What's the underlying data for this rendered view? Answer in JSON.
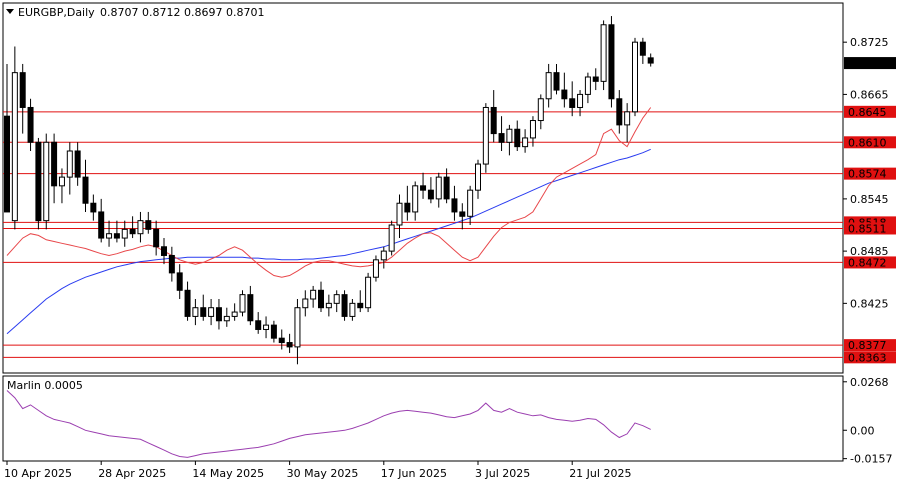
{
  "header": {
    "symbol_tf": "EURGBP,Daily",
    "ohlc": "0.8707 0.8712 0.8697 0.8701"
  },
  "colors": {
    "bull": "#ffffff",
    "bear": "#000000",
    "wick": "#000000",
    "ma_fast": "#e8474a",
    "ma_slow": "#2a3cf0",
    "level": "#e01010",
    "marlin": "#9b3fb0",
    "grid_bg": "#ffffff",
    "panel_bg": "#d4d0c8"
  },
  "chart_data": {
    "type": "candlestick",
    "yrange_price": [
      0.8345,
      0.877
    ],
    "yrange_osc": [
      -0.017,
      0.03
    ],
    "price_ticks": [
      "0.8725",
      "0.8665",
      "0.8545",
      "0.8485",
      "0.8425"
    ],
    "current_price": "0.8701",
    "levels": [
      {
        "value": 0.8645,
        "label": "0.8645"
      },
      {
        "value": 0.861,
        "label": "0.8610"
      },
      {
        "value": 0.8574,
        "label": "0.8574"
      },
      {
        "value": 0.8518,
        "label": "0.8518"
      },
      {
        "value": 0.8511,
        "label": "0.8511"
      },
      {
        "value": 0.8472,
        "label": "0.8472"
      },
      {
        "value": 0.8377,
        "label": "0.8377"
      },
      {
        "value": 0.8363,
        "label": "0.8363"
      }
    ],
    "date_labels": [
      {
        "i": 0,
        "label": "10 Apr 2025"
      },
      {
        "i": 12,
        "label": "28 Apr 2025"
      },
      {
        "i": 24,
        "label": "14 May 2025"
      },
      {
        "i": 36,
        "label": "30 May 2025"
      },
      {
        "i": 48,
        "label": "17 Jun 2025"
      },
      {
        "i": 60,
        "label": "3 Jul 2025"
      },
      {
        "i": 72,
        "label": "21 Jul 2025"
      }
    ],
    "osc_ticks": [
      "0.0268",
      "0.00",
      "-0.0157"
    ],
    "osc_title": "Marlin 0.0005",
    "candles": [
      [
        0.864,
        0.87,
        0.853,
        0.853
      ],
      [
        0.852,
        0.872,
        0.851,
        0.869
      ],
      [
        0.869,
        0.87,
        0.862,
        0.865
      ],
      [
        0.865,
        0.866,
        0.86,
        0.861
      ],
      [
        0.861,
        0.8615,
        0.851,
        0.852
      ],
      [
        0.852,
        0.862,
        0.851,
        0.861
      ],
      [
        0.861,
        0.862,
        0.854,
        0.856
      ],
      [
        0.856,
        0.858,
        0.854,
        0.857
      ],
      [
        0.857,
        0.861,
        0.855,
        0.86
      ],
      [
        0.86,
        0.861,
        0.856,
        0.857
      ],
      [
        0.857,
        0.859,
        0.853,
        0.854
      ],
      [
        0.854,
        0.855,
        0.852,
        0.853
      ],
      [
        0.853,
        0.8545,
        0.8495,
        0.85
      ],
      [
        0.85,
        0.852,
        0.849,
        0.8505
      ],
      [
        0.8505,
        0.852,
        0.8495,
        0.85
      ],
      [
        0.85,
        0.852,
        0.849,
        0.851
      ],
      [
        0.851,
        0.8525,
        0.85,
        0.8505
      ],
      [
        0.8505,
        0.853,
        0.8495,
        0.852
      ],
      [
        0.852,
        0.853,
        0.8505,
        0.851
      ],
      [
        0.851,
        0.852,
        0.848,
        0.849
      ],
      [
        0.849,
        0.85,
        0.847,
        0.848
      ],
      [
        0.848,
        0.849,
        0.845,
        0.846
      ],
      [
        0.846,
        0.847,
        0.843,
        0.844
      ],
      [
        0.844,
        0.845,
        0.8405,
        0.841
      ],
      [
        0.841,
        0.843,
        0.84,
        0.842
      ],
      [
        0.842,
        0.8435,
        0.8405,
        0.841
      ],
      [
        0.841,
        0.843,
        0.84,
        0.842
      ],
      [
        0.842,
        0.843,
        0.8395,
        0.8405
      ],
      [
        0.8405,
        0.842,
        0.8398,
        0.841
      ],
      [
        0.841,
        0.8425,
        0.8405,
        0.8415
      ],
      [
        0.8415,
        0.844,
        0.841,
        0.8435
      ],
      [
        0.8435,
        0.8445,
        0.84,
        0.8405
      ],
      [
        0.8405,
        0.8415,
        0.839,
        0.8395
      ],
      [
        0.8395,
        0.841,
        0.8385,
        0.84
      ],
      [
        0.84,
        0.8405,
        0.838,
        0.8385
      ],
      [
        0.8385,
        0.8395,
        0.8372,
        0.838
      ],
      [
        0.838,
        0.839,
        0.8368,
        0.8375
      ],
      [
        0.8375,
        0.843,
        0.8355,
        0.842
      ],
      [
        0.842,
        0.844,
        0.841,
        0.843
      ],
      [
        0.843,
        0.8445,
        0.842,
        0.844
      ],
      [
        0.844,
        0.845,
        0.8415,
        0.842
      ],
      [
        0.842,
        0.8435,
        0.841,
        0.8425
      ],
      [
        0.8425,
        0.844,
        0.8415,
        0.8435
      ],
      [
        0.8435,
        0.844,
        0.8405,
        0.841
      ],
      [
        0.841,
        0.843,
        0.8405,
        0.8425
      ],
      [
        0.8425,
        0.844,
        0.8415,
        0.842
      ],
      [
        0.842,
        0.846,
        0.8415,
        0.8455
      ],
      [
        0.8455,
        0.848,
        0.845,
        0.8475
      ],
      [
        0.8475,
        0.849,
        0.8465,
        0.8485
      ],
      [
        0.8485,
        0.852,
        0.848,
        0.8515
      ],
      [
        0.8515,
        0.855,
        0.85,
        0.854
      ],
      [
        0.854,
        0.856,
        0.852,
        0.853
      ],
      [
        0.853,
        0.8565,
        0.852,
        0.856
      ],
      [
        0.856,
        0.8575,
        0.8545,
        0.8555
      ],
      [
        0.8555,
        0.857,
        0.854,
        0.8545
      ],
      [
        0.8545,
        0.8575,
        0.8535,
        0.857
      ],
      [
        0.857,
        0.858,
        0.854,
        0.8545
      ],
      [
        0.8545,
        0.856,
        0.852,
        0.853
      ],
      [
        0.853,
        0.854,
        0.851,
        0.8525
      ],
      [
        0.8525,
        0.856,
        0.8515,
        0.8555
      ],
      [
        0.8555,
        0.859,
        0.8545,
        0.8585
      ],
      [
        0.8585,
        0.8655,
        0.8575,
        0.865
      ],
      [
        0.865,
        0.867,
        0.861,
        0.862
      ],
      [
        0.862,
        0.864,
        0.86,
        0.861
      ],
      [
        0.861,
        0.863,
        0.8595,
        0.8625
      ],
      [
        0.8625,
        0.8635,
        0.86,
        0.8605
      ],
      [
        0.8605,
        0.8625,
        0.8598,
        0.8615
      ],
      [
        0.8615,
        0.864,
        0.8605,
        0.8635
      ],
      [
        0.8635,
        0.8665,
        0.8625,
        0.866
      ],
      [
        0.866,
        0.87,
        0.865,
        0.869
      ],
      [
        0.869,
        0.87,
        0.8665,
        0.867
      ],
      [
        0.867,
        0.869,
        0.865,
        0.866
      ],
      [
        0.866,
        0.868,
        0.864,
        0.865
      ],
      [
        0.865,
        0.867,
        0.864,
        0.8665
      ],
      [
        0.8665,
        0.869,
        0.8655,
        0.8685
      ],
      [
        0.8685,
        0.8695,
        0.867,
        0.868
      ],
      [
        0.868,
        0.875,
        0.867,
        0.8745
      ],
      [
        0.8745,
        0.8755,
        0.865,
        0.866
      ],
      [
        0.866,
        0.867,
        0.862,
        0.863
      ],
      [
        0.863,
        0.8655,
        0.861,
        0.8645
      ],
      [
        0.8645,
        0.873,
        0.864,
        0.8725
      ],
      [
        0.8725,
        0.873,
        0.87,
        0.871
      ],
      [
        0.8707,
        0.8712,
        0.8697,
        0.8701
      ]
    ],
    "ma_fast": [
      0.848,
      0.849,
      0.85,
      0.8505,
      0.8503,
      0.8498,
      0.8496,
      0.8494,
      0.8492,
      0.849,
      0.8488,
      0.8485,
      0.8482,
      0.848,
      0.8482,
      0.8485,
      0.8487,
      0.849,
      0.8492,
      0.849,
      0.8485,
      0.848,
      0.8475,
      0.8472,
      0.847,
      0.8472,
      0.8476,
      0.848,
      0.8486,
      0.849,
      0.8486,
      0.8478,
      0.847,
      0.8463,
      0.8457,
      0.8455,
      0.8457,
      0.8462,
      0.8468,
      0.8472,
      0.8474,
      0.8474,
      0.8472,
      0.847,
      0.8468,
      0.8467,
      0.8468,
      0.847,
      0.8472,
      0.8478,
      0.8486,
      0.8494,
      0.85,
      0.8505,
      0.8506,
      0.8502,
      0.8494,
      0.8486,
      0.8478,
      0.8474,
      0.8478,
      0.849,
      0.8502,
      0.8512,
      0.8518,
      0.8521,
      0.8524,
      0.853,
      0.8545,
      0.856,
      0.857,
      0.8575,
      0.858,
      0.8585,
      0.859,
      0.8596,
      0.862,
      0.8625,
      0.8612,
      0.8605,
      0.8622,
      0.8638,
      0.865
    ],
    "ma_slow": [
      0.839,
      0.8398,
      0.8406,
      0.8414,
      0.8422,
      0.843,
      0.8436,
      0.8442,
      0.8447,
      0.8451,
      0.8455,
      0.8458,
      0.8461,
      0.8464,
      0.8467,
      0.8469,
      0.8471,
      0.8473,
      0.8474,
      0.8475,
      0.8476,
      0.8477,
      0.8477,
      0.8478,
      0.8478,
      0.8478,
      0.8478,
      0.8478,
      0.8478,
      0.8478,
      0.8478,
      0.8477,
      0.8477,
      0.8476,
      0.8476,
      0.8475,
      0.8475,
      0.8475,
      0.8476,
      0.8476,
      0.8477,
      0.8478,
      0.8479,
      0.848,
      0.8482,
      0.8484,
      0.8486,
      0.8488,
      0.849,
      0.8493,
      0.8496,
      0.8499,
      0.8502,
      0.8505,
      0.8508,
      0.8511,
      0.8514,
      0.8517,
      0.852,
      0.8523,
      0.8527,
      0.8531,
      0.8535,
      0.8539,
      0.8543,
      0.8547,
      0.8551,
      0.8555,
      0.8559,
      0.8563,
      0.8566,
      0.8569,
      0.8572,
      0.8575,
      0.8578,
      0.8581,
      0.8584,
      0.8587,
      0.859,
      0.8592,
      0.8595,
      0.8598,
      0.8602
    ],
    "marlin": [
      0.022,
      0.018,
      0.012,
      0.014,
      0.011,
      0.008,
      0.006,
      0.005,
      0.004,
      0.002,
      0.0,
      -0.001,
      -0.002,
      -0.003,
      -0.0035,
      -0.004,
      -0.0045,
      -0.005,
      -0.007,
      -0.009,
      -0.011,
      -0.013,
      -0.0145,
      -0.015,
      -0.014,
      -0.013,
      -0.0125,
      -0.012,
      -0.0115,
      -0.011,
      -0.0105,
      -0.01,
      -0.0095,
      -0.0085,
      -0.0075,
      -0.006,
      -0.0045,
      -0.0035,
      -0.0025,
      -0.002,
      -0.0015,
      -0.001,
      -0.0005,
      0.0,
      0.001,
      0.0025,
      0.004,
      0.006,
      0.008,
      0.0095,
      0.0105,
      0.011,
      0.0105,
      0.01,
      0.0095,
      0.0085,
      0.0075,
      0.007,
      0.008,
      0.009,
      0.011,
      0.015,
      0.011,
      0.01,
      0.012,
      0.01,
      0.009,
      0.008,
      0.0085,
      0.007,
      0.006,
      0.0055,
      0.005,
      0.0055,
      0.0065,
      0.006,
      0.003,
      -0.001,
      -0.004,
      -0.002,
      0.004,
      0.0025,
      0.0005
    ]
  }
}
